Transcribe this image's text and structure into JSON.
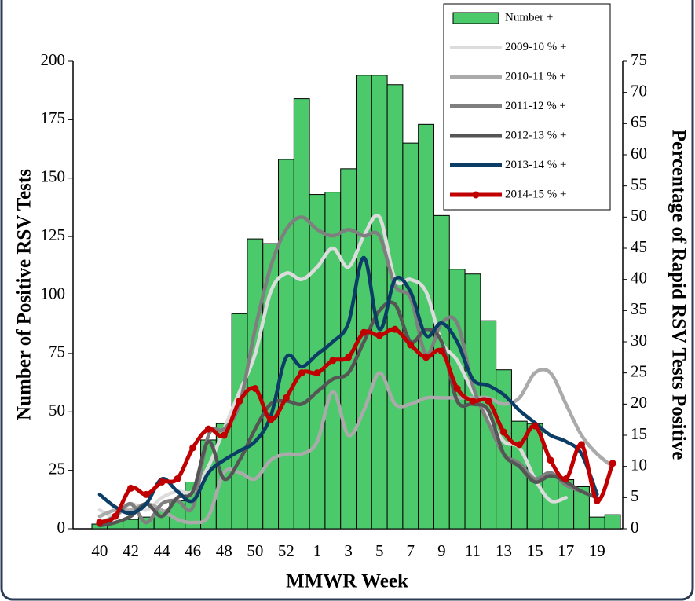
{
  "chart_data": {
    "type": "bar",
    "x_label": "MMWR Week",
    "y_label": "Number of Positive RSV Tests",
    "y2_label": "Percentage of Rapid RSV Tests Positive",
    "categories": [
      40,
      null,
      42,
      null,
      44,
      null,
      46,
      null,
      48,
      null,
      50,
      null,
      52,
      null,
      1,
      null,
      3,
      null,
      5,
      null,
      7,
      null,
      9,
      null,
      11,
      null,
      13,
      null,
      15,
      null,
      17,
      null,
      19,
      null
    ],
    "ylim": [
      0,
      200
    ],
    "yticks": [
      0,
      25,
      50,
      75,
      100,
      125,
      150,
      175,
      200
    ],
    "y2lim": [
      0,
      75
    ],
    "y2ticks": [
      0,
      5,
      10,
      15,
      20,
      25,
      30,
      35,
      40,
      45,
      50,
      55,
      60,
      65,
      70,
      75
    ],
    "legend": "top-right",
    "series": [
      {
        "name": "Number +",
        "type": "bar",
        "color": "#4cc96a",
        "axis": "y",
        "values": [
          2,
          3,
          4,
          5,
          8,
          12,
          20,
          38,
          45,
          92,
          124,
          122,
          158,
          184,
          143,
          144,
          154,
          194,
          194,
          190,
          165,
          173,
          134,
          111,
          109,
          89,
          68,
          46,
          45,
          23,
          21,
          18,
          5,
          6
        ]
      },
      {
        "name": "2009-10 % +",
        "type": "line",
        "color": "#dcdcdc",
        "axis": "y2",
        "values": [
          3,
          2,
          4,
          3,
          5,
          6,
          6,
          10,
          16,
          22,
          28,
          38,
          41,
          40,
          42,
          45,
          42,
          47,
          50,
          40,
          40,
          38,
          30,
          27,
          22,
          18,
          14,
          13,
          8,
          4.5,
          5,
          null,
          null,
          null
        ]
      },
      {
        "name": "2010-11 % +",
        "type": "line",
        "color": "#aaaaaa",
        "axis": "y2",
        "values": [
          2,
          3,
          3,
          4,
          3,
          1.5,
          1,
          2,
          9,
          9,
          8,
          11,
          12,
          12,
          14,
          22,
          15,
          19,
          25,
          20,
          20,
          21,
          21,
          21,
          21,
          21,
          20,
          21,
          25,
          25,
          20,
          15,
          12,
          10
        ]
      },
      {
        "name": "2011-12 % +",
        "type": "line",
        "color": "#7f7f7f",
        "axis": "y2",
        "values": [
          1,
          2,
          4,
          1,
          4,
          4.5,
          3.5,
          15,
          16,
          20,
          32,
          42,
          48,
          50,
          48,
          47,
          48,
          47,
          47,
          39,
          37,
          28,
          33,
          33,
          23,
          17,
          12,
          10.5,
          8,
          9,
          7,
          6,
          null,
          null
        ]
      },
      {
        "name": "2012-13 % +",
        "type": "line",
        "color": "#555555",
        "axis": "y2",
        "values": [
          0.5,
          1,
          2,
          4,
          2,
          5,
          6,
          14,
          8,
          11,
          16,
          20,
          20.5,
          20,
          22,
          24,
          25,
          30,
          35,
          36,
          30,
          32,
          30,
          20.5,
          20,
          19,
          12,
          10,
          7.5,
          8.5,
          7.5,
          6,
          5,
          null
        ]
      },
      {
        "name": "2013-14 % +",
        "type": "line",
        "color": "#0b3d66",
        "axis": "y2",
        "values": [
          5.5,
          3.5,
          2.5,
          4,
          8,
          6,
          4.5,
          9,
          11,
          12.5,
          14,
          18,
          27.5,
          26,
          28,
          30,
          33,
          43.5,
          32,
          40,
          38,
          31,
          33,
          30,
          24,
          23,
          21.5,
          19,
          17,
          15,
          14,
          12,
          5.5,
          null
        ]
      },
      {
        "name": "2014-15 % +",
        "type": "line",
        "color": "#c00000",
        "axis": "y2",
        "markers": true,
        "values": [
          1,
          2,
          6.5,
          5.5,
          7.5,
          8,
          13,
          16,
          15,
          20.5,
          22.5,
          17.5,
          21,
          25,
          25,
          27,
          27.5,
          31.5,
          31,
          32,
          29.5,
          27.5,
          28.5,
          22.5,
          20.5,
          20.5,
          15.5,
          13.5,
          16.5,
          11,
          8,
          13.5,
          4.5,
          10.5
        ]
      }
    ]
  }
}
